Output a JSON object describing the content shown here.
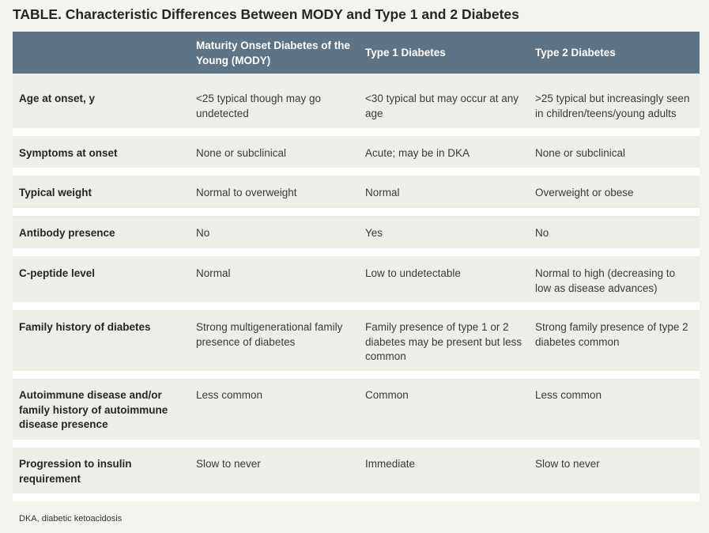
{
  "title": "TABLE. Characteristic Differences Between MODY and Type 1 and 2 Diabetes",
  "table": {
    "headers": [
      "",
      "Maturity Onset Diabetes of the Young (MODY)",
      "Type 1 Diabetes",
      "Type 2 Diabetes"
    ],
    "rows": [
      {
        "feature": "Age at onset, y",
        "mody": "<25 typical though may go undetected",
        "type1": "<30 typical but may occur at any age",
        "type2": ">25 typical but increasingly seen in children/teens/young adults"
      },
      {
        "feature": "Symptoms at onset",
        "mody": "None or subclinical",
        "type1": "Acute; may be in DKA",
        "type2": "None or subclinical"
      },
      {
        "feature": "Typical weight",
        "mody": "Normal to overweight",
        "type1": "Normal",
        "type2": "Overweight or obese"
      },
      {
        "feature": "Antibody presence",
        "mody": "No",
        "type1": "Yes",
        "type2": "No"
      },
      {
        "feature": "C-peptide level",
        "mody": "Normal",
        "type1": "Low to undetectable",
        "type2": "Normal to high (decreasing to low as disease advances)"
      },
      {
        "feature": "Family history of diabetes",
        "mody": "Strong multigenerational family presence of diabetes",
        "type1": "Family presence of type 1 or 2 diabetes may be present but less common",
        "type2": "Strong family presence of type 2 diabetes common"
      },
      {
        "feature": "Autoimmune disease and/or family history of autoimmune disease presence",
        "mody": "Less common",
        "type1": "Common",
        "type2": "Less common"
      },
      {
        "feature": "Progression to insulin requirement",
        "mody": "Slow to never",
        "type1": "Immediate",
        "type2": "Slow to never"
      }
    ]
  },
  "footnote": "DKA, diabetic ketoacidosis"
}
